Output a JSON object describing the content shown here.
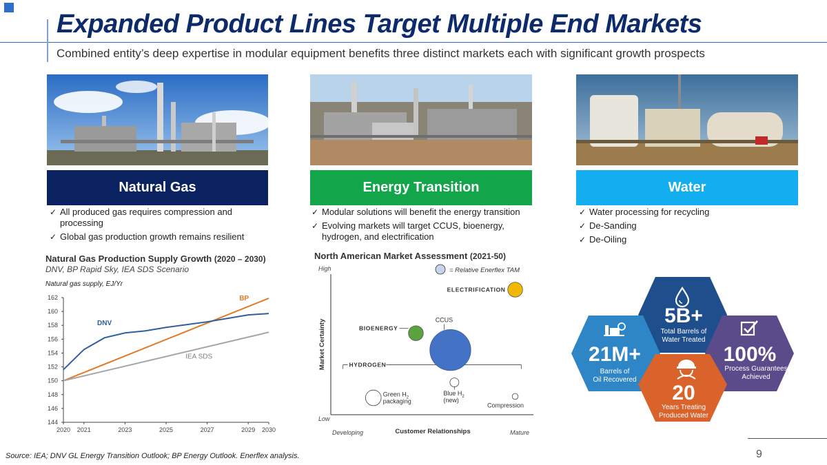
{
  "header": {
    "title": "Expanded Product Lines Target Multiple End Markets",
    "subtitle": "Combined entity’s deep expertise in modular equipment benefits three distinct markets each with significant growth prospects"
  },
  "columns": [
    {
      "title": "Natural Gas",
      "color": "#0b2260",
      "bullets": [
        "All produced gas requires compression and processing",
        "Global gas production growth remains resilient"
      ]
    },
    {
      "title": "Energy Transition",
      "color": "#13a54a",
      "bullets": [
        "Modular solutions will benefit the energy transition",
        "Evolving markets will target CCUS, bioenergy, hydrogen, and electrification"
      ]
    },
    {
      "title": "Water",
      "color": "#12aef0",
      "bullets": [
        "Water processing for recycling",
        "De-Sanding",
        "De-Oiling"
      ]
    }
  ],
  "gas_chart": {
    "title": "Natural Gas Production Supply Growth",
    "title_range": "(2020 – 2030)",
    "subtitle": "DNV, BP Rapid Sky, IEA SDS Scenario",
    "unit": "Natural gas supply, EJ/Yr"
  },
  "chart_data": [
    {
      "type": "line",
      "title": "Natural Gas Production Supply Growth (2020 – 2030)",
      "ylabel": "Natural gas supply, EJ/Yr",
      "xlim": [
        2020,
        2030
      ],
      "ylim": [
        144,
        162
      ],
      "x_ticks": [
        "2020",
        "2021",
        "2023",
        "2025",
        "2027",
        "2029",
        "2030"
      ],
      "x_tick_values": [
        2020,
        2021,
        2023,
        2025,
        2027,
        2029,
        2030
      ],
      "y_ticks": [
        144,
        146,
        148,
        150,
        152,
        154,
        156,
        158,
        160,
        162
      ],
      "grid": false,
      "series": [
        {
          "name": "BP",
          "color": "#e07b2a",
          "x": [
            2020,
            2030
          ],
          "y": [
            150,
            161.9
          ]
        },
        {
          "name": "DNV",
          "color": "#2f5f9f",
          "x": [
            2020,
            2021,
            2022,
            2023,
            2024,
            2025,
            2026,
            2027,
            2028,
            2029,
            2030
          ],
          "y": [
            151.6,
            154.5,
            156.2,
            156.9,
            157.2,
            157.7,
            158.1,
            158.5,
            159.0,
            159.5,
            159.7
          ]
        },
        {
          "name": "IEA SDS",
          "color": "#a6a6a6",
          "x": [
            2020,
            2030
          ],
          "y": [
            150,
            157
          ]
        }
      ]
    },
    {
      "type": "scatter",
      "title": "North American Market Assessment",
      "title_range": "(2021-50)",
      "xlabel": "Customer Relationships",
      "ylabel": "Market Certainty",
      "x_low": "Developing",
      "x_high": "Mature",
      "y_high": "High",
      "y_low": "Low",
      "legend": "= Relative Enerflex TAM",
      "group_label": "Hydrogen",
      "note": "Bubble size = relative TAM; positions on 0–10 qualitative scale",
      "xlim": [
        0,
        10
      ],
      "ylim": [
        0,
        10
      ],
      "points": [
        {
          "label": "Electrification",
          "x": 9.1,
          "y": 8.9,
          "size": 2.0,
          "color": "#f2b800"
        },
        {
          "label": "Bioenergy",
          "x": 4.2,
          "y": 5.8,
          "size": 2.0,
          "color": "#5aa33f"
        },
        {
          "label": "CCUS",
          "x": 5.9,
          "y": 4.6,
          "size": 5.5,
          "color": "#4472c4"
        },
        {
          "label_line1": "Green H",
          "label_sub": "2",
          "label_line2": "packaging",
          "x": 2.1,
          "y": 1.2,
          "size": 2.1,
          "color": "#ffffff"
        },
        {
          "label_line1": "Blue H",
          "label_sub": "2",
          "label_line2": "(new)",
          "x": 6.1,
          "y": 2.3,
          "size": 1.2,
          "color": "#ffffff"
        },
        {
          "label": "Compression",
          "x": 9.1,
          "y": 1.3,
          "size": 0.8,
          "color": "#ffffff"
        }
      ]
    }
  ],
  "stats": [
    {
      "value": "5B+",
      "line1": "Total Barrels of",
      "line2": "Water Treated",
      "icon": "water-drop-icon",
      "color": "#1f4e8c"
    },
    {
      "value": "21M+",
      "line1": "Barrels of",
      "line2": "Oil Recovered",
      "icon": "oil-facility-icon",
      "color": "#2e86c7"
    },
    {
      "value": "100%",
      "line1": "Process Guarantees",
      "line2": "Achieved",
      "icon": "checkbox-icon",
      "color": "#5b4b8a"
    },
    {
      "value": "20",
      "line1": "Years Treating",
      "line2": "Produced Water",
      "icon": "hard-hat-worker-icon",
      "color": "#d9632b"
    }
  ],
  "footer": {
    "source": "Source: IEA; DNV GL Energy Transition Outlook; BP Energy Outlook. Enerflex analysis.",
    "page": "9"
  }
}
